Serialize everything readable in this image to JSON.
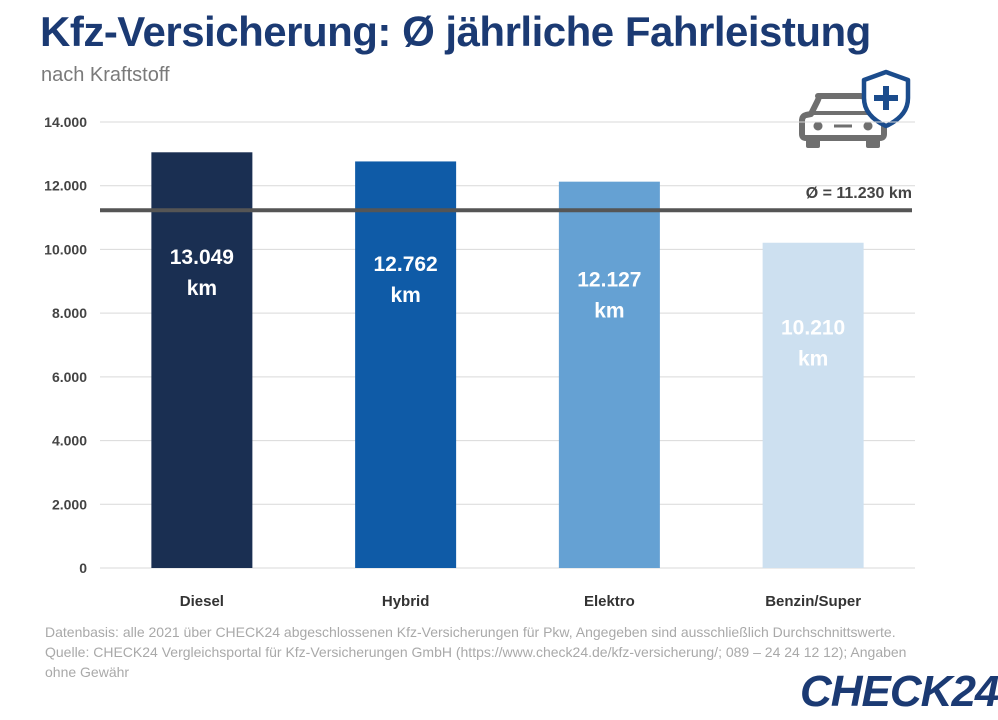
{
  "header": {
    "title": "Kfz-Versicherung: Ø jährliche Fahrleistung",
    "subtitle": "nach Kraftstoff"
  },
  "chart_data": {
    "type": "bar",
    "title": "Kfz-Versicherung: Ø jährliche Fahrleistung",
    "subtitle": "nach Kraftstoff",
    "categories": [
      "Diesel",
      "Hybrid",
      "Elektro",
      "Benzin/Super"
    ],
    "values": [
      13049,
      12762,
      12127,
      10210
    ],
    "value_labels": [
      "13.049",
      "12.762",
      "12.127",
      "10.210"
    ],
    "unit": "km",
    "bar_colors": [
      "#1a2f52",
      "#0f5ba7",
      "#65a1d3",
      "#cde0f0"
    ],
    "label_colors": [
      "#ffffff",
      "#ffffff",
      "#ffffff",
      "#ffffff"
    ],
    "ylim": [
      0,
      14000
    ],
    "yticks": [
      0,
      2000,
      4000,
      6000,
      8000,
      10000,
      12000,
      14000
    ],
    "ytick_labels": [
      "0",
      "2.000",
      "4.000",
      "6.000",
      "8.000",
      "10.000",
      "12.000",
      "14.000"
    ],
    "average": {
      "value": 11230,
      "label": "Ø = 11.230 km"
    },
    "grid": true,
    "legend": "none"
  },
  "footnote": {
    "line1": "Datenbasis: alle 2021 über CHECK24 abgeschlossenen Kfz-Versicherungen für Pkw, Angegeben sind ausschließlich Durchschnittswerte.",
    "line2": "Quelle: CHECK24 Vergleichsportal für Kfz-Versicherungen GmbH (https://www.check24.de/kfz-versicherung/; 089 – 24 24 12 12); Angaben ohne Gewähr"
  },
  "brand": {
    "logo_text": "CHECK24"
  },
  "icons": [
    "car-shield-plus-icon"
  ]
}
